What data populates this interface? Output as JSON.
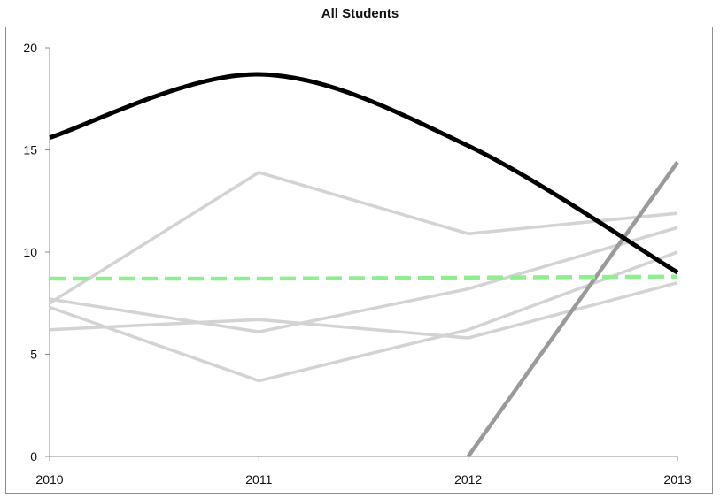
{
  "chart_data": {
    "type": "line",
    "title": "All Students",
    "xlabel": "",
    "ylabel": "",
    "x": [
      "2010",
      "2011",
      "2012",
      "2013"
    ],
    "ylim": [
      0,
      20
    ],
    "yticks": [
      0,
      5,
      10,
      15,
      20
    ],
    "grid": false,
    "legend": "none",
    "series": [
      {
        "values": [
          7.5,
          13.9,
          10.9,
          11.9
        ],
        "color": "#d3d3d3",
        "style": "solid",
        "smooth": false
      },
      {
        "values": [
          7.3,
          3.7,
          6.2,
          10.0
        ],
        "color": "#d3d3d3",
        "style": "solid",
        "smooth": false
      },
      {
        "values": [
          6.2,
          6.7,
          5.8,
          8.5
        ],
        "color": "#d3d3d3",
        "style": "solid",
        "smooth": false
      },
      {
        "values": [
          7.7,
          6.1,
          8.2,
          11.2
        ],
        "color": "#d3d3d3",
        "style": "solid",
        "smooth": false
      },
      {
        "values": [
          null,
          null,
          0,
          14.4
        ],
        "color": "#9a9a9a",
        "style": "solid",
        "smooth": false
      },
      {
        "values": [
          8.7,
          8.7,
          8.75,
          8.8
        ],
        "color": "#90ee90",
        "style": "dashed",
        "smooth": false
      },
      {
        "values": [
          15.6,
          18.7,
          15.2,
          9.0
        ],
        "color": "#000000",
        "style": "solid",
        "smooth": true
      }
    ]
  }
}
